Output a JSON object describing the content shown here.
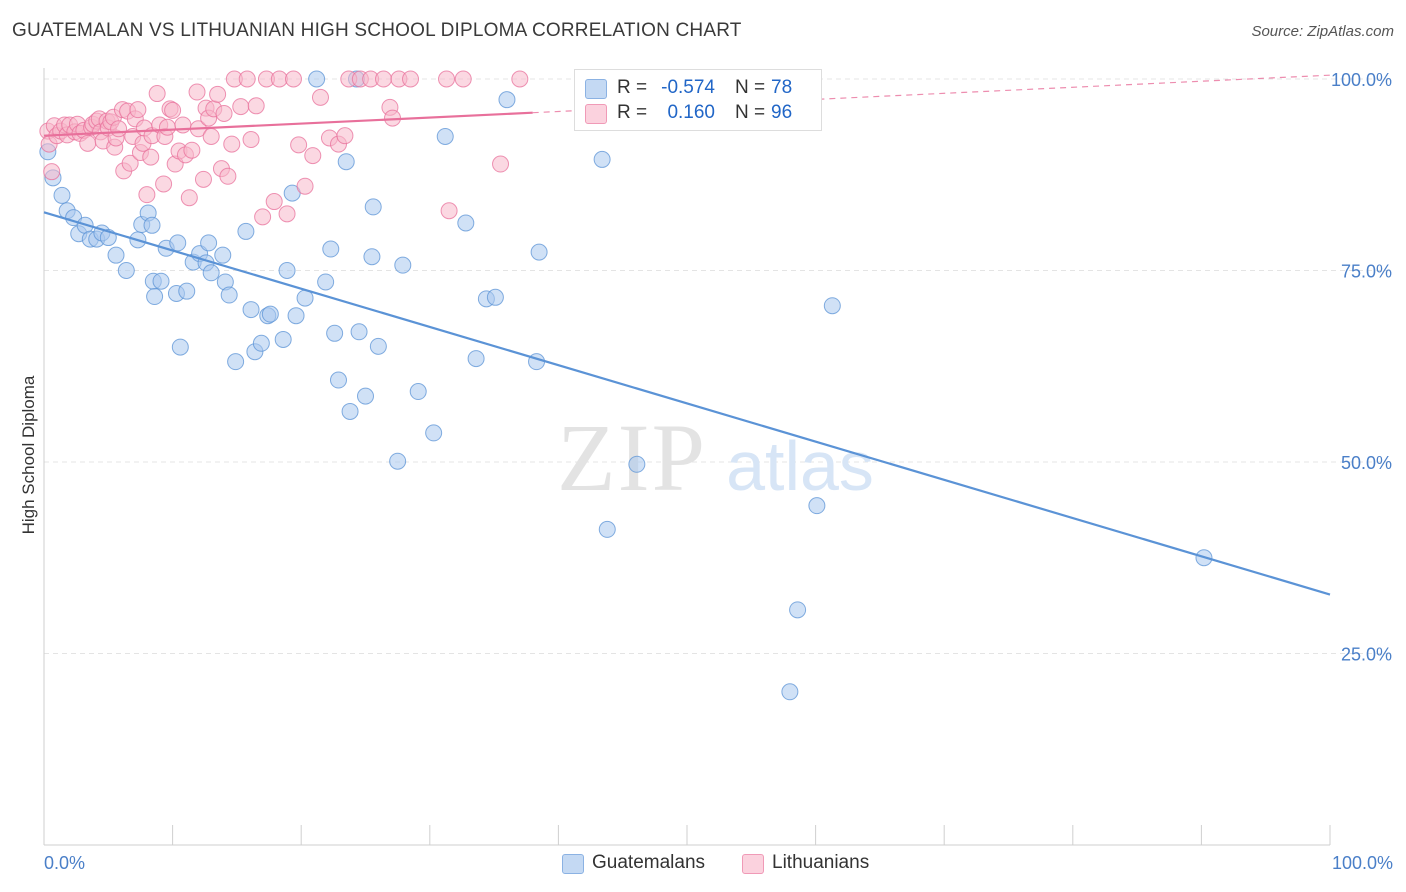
{
  "header": {
    "title": "GUATEMALAN VS LITHUANIAN HIGH SCHOOL DIPLOMA CORRELATION CHART",
    "source": "Source: ZipAtlas.com"
  },
  "watermark": {
    "zip": "ZIP",
    "atlas": "atlas"
  },
  "legend": {
    "r_label": "R =",
    "n_label": "N =",
    "rows": [
      {
        "r": "-0.574",
        "n": "78",
        "color": "#a9c8ee"
      },
      {
        "r": "0.160",
        "n": "96",
        "color": "#f7b8cb"
      }
    ]
  },
  "bottom_legend": [
    {
      "label": "Guatemalans",
      "color": "#a9c8ee"
    },
    {
      "label": "Lithuanians",
      "color": "#f7b8cb"
    }
  ],
  "chart_data": {
    "type": "scatter",
    "title": "GUATEMALAN VS LITHUANIAN HIGH SCHOOL DIPLOMA CORRELATION CHART",
    "xlabel": "",
    "ylabel": "High School Diploma",
    "xlim": [
      0,
      100
    ],
    "ylim": [
      0,
      105
    ],
    "x_tick_labels": [
      "0.0%",
      "100.0%"
    ],
    "y_ticks": [
      25,
      50,
      75,
      100
    ],
    "y_tick_labels": [
      "25.0%",
      "50.0%",
      "75.0%",
      "100.0%"
    ],
    "grid": true,
    "legend_position": "top-center",
    "series": [
      {
        "name": "Guatemalans",
        "color": "#5b93d6",
        "fill": "#a9c8ee",
        "r": -0.574,
        "n": 78,
        "trend": {
          "x": [
            0,
            100
          ],
          "y": [
            82.6,
            32.7
          ]
        },
        "points": [
          [
            0.3,
            90.5
          ],
          [
            0.7,
            87.1
          ],
          [
            1.4,
            84.8
          ],
          [
            1.8,
            82.8
          ],
          [
            2.3,
            81.9
          ],
          [
            2.7,
            79.8
          ],
          [
            3.2,
            80.9
          ],
          [
            3.6,
            79.1
          ],
          [
            4.1,
            79.1
          ],
          [
            4.5,
            79.9
          ],
          [
            5.0,
            79.3
          ],
          [
            5.6,
            77.0
          ],
          [
            6.4,
            75.0
          ],
          [
            7.3,
            79.0
          ],
          [
            7.6,
            81.0
          ],
          [
            8.1,
            82.5
          ],
          [
            8.4,
            80.9
          ],
          [
            8.5,
            73.6
          ],
          [
            8.6,
            71.6
          ],
          [
            9.1,
            73.6
          ],
          [
            9.5,
            77.9
          ],
          [
            10.3,
            72.0
          ],
          [
            10.4,
            78.6
          ],
          [
            10.6,
            65.0
          ],
          [
            11.1,
            72.3
          ],
          [
            11.6,
            76.1
          ],
          [
            12.1,
            77.2
          ],
          [
            12.6,
            76.0
          ],
          [
            12.8,
            78.6
          ],
          [
            13.0,
            74.7
          ],
          [
            13.9,
            77.0
          ],
          [
            14.1,
            73.5
          ],
          [
            14.4,
            71.8
          ],
          [
            14.9,
            63.1
          ],
          [
            15.7,
            80.1
          ],
          [
            16.1,
            69.9
          ],
          [
            16.4,
            64.4
          ],
          [
            16.9,
            65.5
          ],
          [
            17.4,
            69.1
          ],
          [
            17.6,
            69.3
          ],
          [
            18.6,
            66.0
          ],
          [
            18.9,
            75.0
          ],
          [
            19.3,
            85.1
          ],
          [
            19.6,
            69.1
          ],
          [
            20.3,
            71.4
          ],
          [
            21.2,
            100.0
          ],
          [
            21.9,
            73.5
          ],
          [
            22.3,
            77.8
          ],
          [
            22.6,
            66.8
          ],
          [
            22.9,
            60.7
          ],
          [
            23.5,
            89.2
          ],
          [
            23.8,
            56.6
          ],
          [
            24.3,
            100.0
          ],
          [
            24.5,
            67.0
          ],
          [
            25.0,
            58.6
          ],
          [
            25.5,
            76.8
          ],
          [
            25.6,
            83.3
          ],
          [
            26.0,
            65.1
          ],
          [
            27.5,
            50.1
          ],
          [
            27.9,
            75.7
          ],
          [
            29.1,
            59.2
          ],
          [
            30.3,
            53.8
          ],
          [
            31.2,
            92.5
          ],
          [
            32.8,
            81.2
          ],
          [
            33.6,
            63.5
          ],
          [
            34.4,
            71.3
          ],
          [
            35.1,
            71.5
          ],
          [
            36.0,
            97.3
          ],
          [
            38.3,
            63.1
          ],
          [
            38.5,
            77.4
          ],
          [
            43.4,
            89.5
          ],
          [
            43.8,
            41.2
          ],
          [
            46.1,
            49.7
          ],
          [
            58.0,
            20.0
          ],
          [
            58.6,
            30.7
          ],
          [
            60.1,
            44.3
          ],
          [
            61.3,
            70.4
          ],
          [
            90.2,
            37.5
          ]
        ]
      },
      {
        "name": "Lithuanians",
        "color": "#e8709b",
        "fill": "#f7b8cb",
        "r": 0.16,
        "n": 96,
        "trend": {
          "x": [
            0,
            38.0
          ],
          "y": [
            92.6,
            95.6
          ]
        },
        "trend_dashed": {
          "x": [
            38.0,
            100
          ],
          "y": [
            95.6,
            100.5
          ]
        },
        "points": [
          [
            0.3,
            93.2
          ],
          [
            0.4,
            91.5
          ],
          [
            0.6,
            87.9
          ],
          [
            0.8,
            93.9
          ],
          [
            1.0,
            92.6
          ],
          [
            1.3,
            93.2
          ],
          [
            1.6,
            94.0
          ],
          [
            1.8,
            92.7
          ],
          [
            2.0,
            94.0
          ],
          [
            2.4,
            93.1
          ],
          [
            2.6,
            94.1
          ],
          [
            2.8,
            92.9
          ],
          [
            3.1,
            93.3
          ],
          [
            3.4,
            91.6
          ],
          [
            3.7,
            93.7
          ],
          [
            3.8,
            94.1
          ],
          [
            4.1,
            94.5
          ],
          [
            4.3,
            94.8
          ],
          [
            4.4,
            93.1
          ],
          [
            4.6,
            91.9
          ],
          [
            4.9,
            94.5
          ],
          [
            5.0,
            93.6
          ],
          [
            5.2,
            94.4
          ],
          [
            5.4,
            95.0
          ],
          [
            5.5,
            91.1
          ],
          [
            5.6,
            92.3
          ],
          [
            5.8,
            93.5
          ],
          [
            6.1,
            96.0
          ],
          [
            6.2,
            88.0
          ],
          [
            6.5,
            95.8
          ],
          [
            6.7,
            89.0
          ],
          [
            6.9,
            92.5
          ],
          [
            7.1,
            94.8
          ],
          [
            7.3,
            96.0
          ],
          [
            7.5,
            90.4
          ],
          [
            7.7,
            91.6
          ],
          [
            7.8,
            93.6
          ],
          [
            8.0,
            84.9
          ],
          [
            8.3,
            89.8
          ],
          [
            8.4,
            92.6
          ],
          [
            8.8,
            98.1
          ],
          [
            9.0,
            94.0
          ],
          [
            9.3,
            86.3
          ],
          [
            9.4,
            92.5
          ],
          [
            9.6,
            93.7
          ],
          [
            9.8,
            96.1
          ],
          [
            10.0,
            95.9
          ],
          [
            10.2,
            88.9
          ],
          [
            10.5,
            90.6
          ],
          [
            10.8,
            94.0
          ],
          [
            11.0,
            90.1
          ],
          [
            11.3,
            84.5
          ],
          [
            11.5,
            90.7
          ],
          [
            11.9,
            98.3
          ],
          [
            12.0,
            93.5
          ],
          [
            12.4,
            86.9
          ],
          [
            12.6,
            96.2
          ],
          [
            12.8,
            94.9
          ],
          [
            13.0,
            92.5
          ],
          [
            13.2,
            96.1
          ],
          [
            13.5,
            98.0
          ],
          [
            13.8,
            88.3
          ],
          [
            14.0,
            95.5
          ],
          [
            14.3,
            87.3
          ],
          [
            14.6,
            91.5
          ],
          [
            14.8,
            100.0
          ],
          [
            15.3,
            96.4
          ],
          [
            15.8,
            100.0
          ],
          [
            16.1,
            92.1
          ],
          [
            16.5,
            96.5
          ],
          [
            17.0,
            82.0
          ],
          [
            17.3,
            100.0
          ],
          [
            17.9,
            84.0
          ],
          [
            18.3,
            100.0
          ],
          [
            18.9,
            82.4
          ],
          [
            19.4,
            100.0
          ],
          [
            19.8,
            91.4
          ],
          [
            20.3,
            86.0
          ],
          [
            20.9,
            90.0
          ],
          [
            21.5,
            97.6
          ],
          [
            22.2,
            92.3
          ],
          [
            22.9,
            91.5
          ],
          [
            23.4,
            92.6
          ],
          [
            23.7,
            100.0
          ],
          [
            24.6,
            100.0
          ],
          [
            25.4,
            100.0
          ],
          [
            26.4,
            100.0
          ],
          [
            26.9,
            96.3
          ],
          [
            27.1,
            94.9
          ],
          [
            27.6,
            100.0
          ],
          [
            28.5,
            100.0
          ],
          [
            31.3,
            100.0
          ],
          [
            31.5,
            82.8
          ],
          [
            32.6,
            100.0
          ],
          [
            35.5,
            88.9
          ],
          [
            37.0,
            100.0
          ]
        ]
      }
    ]
  }
}
